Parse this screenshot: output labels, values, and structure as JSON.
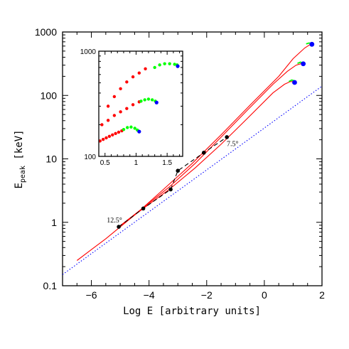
{
  "chart_data": [
    {
      "type": "line",
      "xlabel": "Log E [arbitrary units]",
      "ylabel_main": "E",
      "ylabel_sub": "peak",
      "ylabel_unit": " [keV]",
      "xlim": [
        -7,
        2
      ],
      "ylim": [
        0.1,
        1000
      ],
      "yscale": "log",
      "x_tick_labels": [
        "−6",
        "−4",
        "−2",
        "0",
        "2"
      ],
      "x_ticks": [
        -6,
        -4,
        -2,
        0,
        2
      ],
      "y_tick_labels": [
        "0.1",
        "1",
        "10",
        "100",
        "1000"
      ],
      "y_ticks": [
        0.1,
        1,
        10,
        100,
        1000
      ],
      "colors": {
        "red": "#ff0000",
        "blue": "#0000ff",
        "green": "#00ff00",
        "black": "#000000"
      },
      "series": [
        {
          "color": "red",
          "style": "solid",
          "x": [
            -6.5,
            -5.5,
            -4.5,
            -3.5,
            -2.5,
            -1.5,
            -0.5,
            0.5,
            1.0,
            1.4,
            1.6
          ],
          "y": [
            0.25,
            0.55,
            1.3,
            3.3,
            8.5,
            24,
            70,
            200,
            380,
            560,
            640
          ]
        },
        {
          "color": "red",
          "style": "solid",
          "x": [
            -5.05,
            -4.2,
            -3.3,
            -2.4,
            -1.5,
            -0.6,
            0.3,
            0.8,
            1.1,
            1.3
          ],
          "y": [
            0.85,
            1.7,
            3.6,
            8.5,
            22,
            58,
            150,
            240,
            300,
            320
          ]
        },
        {
          "color": "red",
          "style": "solid",
          "x": [
            -5.05,
            -4.2,
            -3.3,
            -2.4,
            -1.5,
            -0.6,
            0.3,
            0.7,
            0.9,
            1.05
          ],
          "y": [
            0.85,
            1.65,
            3.3,
            7.2,
            17,
            43,
            110,
            150,
            165,
            165
          ]
        },
        {
          "color": "green",
          "style": "solid",
          "x": [
            1.45,
            1.55,
            1.65
          ],
          "y": [
            650,
            670,
            660
          ]
        },
        {
          "color": "green",
          "style": "solid",
          "x": [
            1.15,
            1.25,
            1.35
          ],
          "y": [
            320,
            335,
            325
          ]
        },
        {
          "color": "green",
          "style": "solid",
          "x": [
            0.85,
            0.95,
            1.05
          ],
          "y": [
            165,
            175,
            170
          ]
        },
        {
          "color": "blue",
          "style": "dotted",
          "x": [
            -7,
            2
          ],
          "y": [
            0.15,
            140
          ]
        },
        {
          "color": "black",
          "style": "dashed",
          "x": [
            -5.05,
            -4.2,
            -3.25,
            -3.0,
            -2.1,
            -1.3
          ],
          "y": [
            0.85,
            1.65,
            3.3,
            6.5,
            12.5,
            22
          ]
        }
      ],
      "black_points": {
        "x": [
          -5.05,
          -4.2,
          -3.25,
          -3.0,
          -2.1,
          -1.3
        ],
        "y": [
          0.85,
          1.65,
          3.3,
          6.5,
          12.5,
          22
        ]
      },
      "blue_points": {
        "x": [
          1.65,
          1.35,
          1.05
        ],
        "y": [
          640,
          315,
          160
        ]
      },
      "annotations": [
        {
          "text": "12.5°",
          "x": -5.2,
          "y": 1.0
        },
        {
          "text": "7.5°",
          "x": -1.1,
          "y": 16
        }
      ]
    },
    {
      "type": "scatter",
      "inset": true,
      "xlim": [
        0.4,
        1.75
      ],
      "ylim": [
        100,
        1000
      ],
      "yscale": "log",
      "x_tick_labels": [
        "0.5",
        "1",
        "1.5"
      ],
      "x_ticks": [
        0.5,
        1.0,
        1.5
      ],
      "y_tick_labels": [
        "100",
        "1000"
      ],
      "y_ticks": [
        100,
        1000
      ],
      "series": [
        {
          "color": "red",
          "x": [
            0.55,
            0.65,
            0.75,
            0.85,
            0.95,
            1.05,
            1.15,
            0.45,
            0.55,
            0.65,
            0.75,
            0.85,
            0.95,
            1.05,
            0.42,
            0.47,
            0.52,
            0.57,
            0.62,
            0.67,
            0.72,
            0.77
          ],
          "y": [
            300,
            370,
            440,
            510,
            570,
            620,
            680,
            200,
            220,
            245,
            265,
            285,
            310,
            330,
            140,
            145,
            150,
            155,
            160,
            165,
            170,
            175
          ]
        },
        {
          "color": "green",
          "x": [
            1.3,
            1.38,
            1.46,
            1.54,
            1.62,
            1.66,
            1.08,
            1.14,
            1.2,
            1.26,
            1.31,
            0.8,
            0.86,
            0.92,
            0.98,
            1.02
          ],
          "y": [
            700,
            740,
            760,
            760,
            750,
            740,
            335,
            345,
            350,
            345,
            335,
            180,
            188,
            190,
            185,
            178
          ]
        },
        {
          "color": "blue",
          "x": [
            1.67,
            1.33,
            1.05
          ],
          "y": [
            720,
            325,
            172
          ]
        }
      ]
    }
  ]
}
